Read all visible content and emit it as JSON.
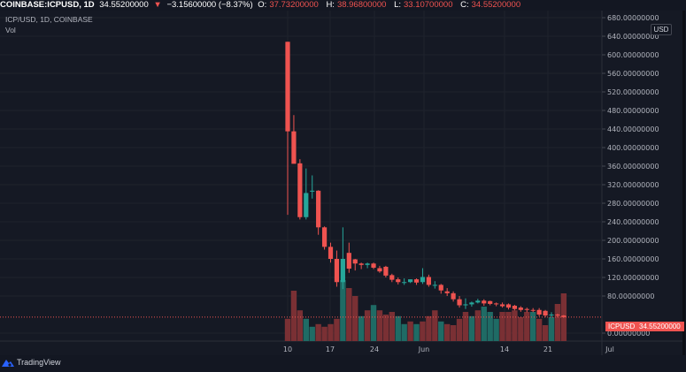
{
  "header": {
    "symbol": "COINBASE:ICPUSD, 1D",
    "last": "34.55200000",
    "change_icon": "triangle-down-icon",
    "change": "−3.15600000 (−8.37%)",
    "open_label": "O:",
    "open": "37.73200000",
    "high_label": "H:",
    "high": "38.96800000",
    "low_label": "L:",
    "low": "33.10700000",
    "close_label": "C:",
    "close": "34.55200000"
  },
  "legend": {
    "title": "ICP/USD, 1D, COINBASE",
    "vol": "Vol"
  },
  "price_axis": {
    "currency_tag": "USD",
    "ticks": [
      "680.00000000",
      "640.00000000",
      "600.00000000",
      "560.00000000",
      "520.00000000",
      "480.00000000",
      "440.00000000",
      "400.00000000",
      "360.00000000",
      "320.00000000",
      "280.00000000",
      "240.00000000",
      "200.00000000",
      "160.00000000",
      "120.00000000",
      "80.00000000",
      "0.00000000"
    ]
  },
  "last_price_tag": {
    "symbol": "ICPUSD",
    "value": "34.55200000"
  },
  "time_axis": {
    "ticks": [
      "10",
      "17",
      "24",
      "Jun",
      "14",
      "21",
      "Jul"
    ]
  },
  "branding": {
    "logo_icon": "tradingview-cloud-icon",
    "name": "TradingView"
  },
  "colors": {
    "up": "#26a69a",
    "down": "#ef5350",
    "vol_up": "#1f6b65",
    "vol_down": "#7a3034",
    "background": "#151924",
    "grid": "#1e222d"
  },
  "chart_data": {
    "type": "candlestick",
    "title": "ICP/USD, 1D, COINBASE",
    "xlabel": "",
    "ylabel": "USD",
    "ylim": [
      0,
      680
    ],
    "grid": true,
    "x_ticks": [
      "10",
      "17",
      "24",
      "Jun",
      "14",
      "21",
      "Jul"
    ],
    "days": [
      "May 10",
      "May 11",
      "May 12",
      "May 13",
      "May 14",
      "May 15",
      "May 16",
      "May 17",
      "May 18",
      "May 19",
      "May 20",
      "May 21",
      "May 22",
      "May 23",
      "May 24",
      "May 25",
      "May 26",
      "May 27",
      "May 28",
      "May 29",
      "May 30",
      "May 31",
      "Jun 1",
      "Jun 2",
      "Jun 3",
      "Jun 4",
      "Jun 5",
      "Jun 6",
      "Jun 7",
      "Jun 8",
      "Jun 9",
      "Jun 10",
      "Jun 11",
      "Jun 12",
      "Jun 13",
      "Jun 14",
      "Jun 15",
      "Jun 16",
      "Jun 17",
      "Jun 18",
      "Jun 19",
      "Jun 20",
      "Jun 21",
      "Jun 22",
      "Jun 23",
      "Jun 24"
    ],
    "open": [
      628,
      435,
      366,
      250,
      305,
      307,
      228,
      186,
      160,
      110,
      173,
      159,
      150,
      147,
      150,
      140,
      143,
      125,
      116,
      110,
      110,
      116,
      110,
      121,
      104,
      104,
      90,
      86,
      73,
      60,
      62,
      66,
      70,
      69,
      64,
      62,
      62,
      59,
      55,
      52,
      50,
      50,
      48,
      38,
      40,
      38
    ],
    "close": [
      435,
      365,
      250,
      302,
      307,
      228,
      186,
      160,
      110,
      160,
      139,
      150,
      147,
      150,
      141,
      133,
      124,
      115,
      110,
      110,
      116,
      109,
      121,
      104,
      104,
      92,
      86,
      73,
      60,
      62,
      66,
      70,
      64,
      63,
      62,
      58,
      55,
      52,
      50,
      50,
      49,
      40,
      38,
      40,
      38,
      34.55
    ],
    "high": [
      628,
      470,
      375,
      355,
      340,
      308,
      230,
      195,
      178,
      228,
      195,
      160,
      152,
      152,
      152,
      145,
      145,
      128,
      120,
      118,
      116,
      118,
      140,
      126,
      112,
      106,
      97,
      90,
      80,
      75,
      68,
      74,
      73,
      70,
      66,
      66,
      64,
      61,
      58,
      55,
      54,
      54,
      50,
      45,
      42,
      38.97
    ],
    "low": [
      255,
      410,
      245,
      245,
      290,
      212,
      180,
      152,
      100,
      95,
      130,
      135,
      138,
      140,
      138,
      130,
      120,
      110,
      105,
      104,
      108,
      104,
      106,
      100,
      96,
      85,
      80,
      68,
      55,
      52,
      57,
      64,
      59,
      60,
      58,
      55,
      51,
      49,
      46,
      45,
      45,
      36,
      34,
      34,
      34,
      33.1
    ],
    "volume_relative": [
      0.42,
      0.95,
      0.58,
      0.42,
      0.27,
      0.32,
      0.27,
      0.32,
      0.42,
      1.15,
      1.0,
      0.85,
      0.47,
      0.58,
      0.68,
      0.58,
      0.5,
      0.55,
      0.47,
      0.32,
      0.37,
      0.32,
      0.37,
      0.47,
      0.58,
      0.37,
      0.32,
      0.3,
      0.42,
      0.55,
      0.47,
      0.58,
      0.65,
      0.55,
      0.42,
      0.55,
      0.55,
      0.58,
      0.45,
      0.55,
      0.55,
      0.42,
      0.3,
      0.45,
      0.7,
      0.9
    ],
    "volume_direction": [
      "down",
      "down",
      "down",
      "up",
      "up",
      "down",
      "down",
      "down",
      "down",
      "up",
      "down",
      "down",
      "up",
      "down",
      "up",
      "down",
      "down",
      "down",
      "up",
      "up",
      "down",
      "up",
      "down",
      "down",
      "down",
      "up",
      "down",
      "down",
      "down",
      "down",
      "up",
      "down",
      "up",
      "up",
      "up",
      "down",
      "down",
      "down",
      "down",
      "down",
      "up",
      "down",
      "down",
      "up",
      "down",
      "down"
    ],
    "last_price": 34.552
  }
}
